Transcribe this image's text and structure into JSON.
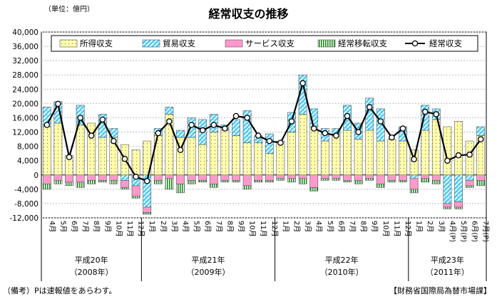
{
  "unit_label": "（単位：億円）",
  "note": "（備考）Pは速報値をあらわす。",
  "source": "【財務省国際局為替市場課】",
  "chart_data": {
    "type": "bar",
    "title": "経常収支の推移",
    "ylim": [
      -12000,
      40000
    ],
    "ytick_step": 4000,
    "yticks": [
      "40,000",
      "36,000",
      "32,000",
      "28,000",
      "24,000",
      "20,000",
      "16,000",
      "12,000",
      "8,000",
      "4,000",
      "0",
      "-4,000",
      "-8,000",
      "-12,000"
    ],
    "grid": true,
    "legend_position": "top",
    "colors": {
      "goods": "#fffcaa",
      "trade": "#55ccf4",
      "services": "#ff99cc",
      "transfers": "#228b22",
      "current": "#000000"
    },
    "categories": [
      "4月",
      "5月",
      "6月",
      "7月",
      "8月",
      "9月",
      "10月",
      "11月",
      "12月",
      "1月",
      "2月",
      "3月",
      "4月",
      "5月",
      "6月",
      "7月",
      "8月",
      "9月",
      "10月",
      "11月",
      "12月",
      "1月",
      "2月",
      "3月",
      "4月",
      "5月",
      "6月",
      "7月",
      "8月",
      "9月",
      "10月",
      "11月",
      "12月",
      "1月",
      "2月",
      "3月",
      "4月(P)",
      "5月(P)",
      "6月(P)",
      "7月(P)"
    ],
    "year_groups": [
      {
        "label": "平成20年",
        "sub": "（2008年）",
        "count": 9
      },
      {
        "label": "平成21年",
        "sub": "（2009年）",
        "count": 12
      },
      {
        "label": "平成22年",
        "sub": "（2010年）",
        "count": 12
      },
      {
        "label": "平成23年",
        "sub": "（2011年）",
        "count": 7
      }
    ],
    "series": [
      {
        "name": "所得収支",
        "key": "goods",
        "values": [
          13500,
          14500,
          5500,
          14000,
          14500,
          10500,
          10500,
          8500,
          7000,
          9500,
          11000,
          17000,
          10500,
          10500,
          8500,
          12000,
          12500,
          11000,
          9000,
          9000,
          6000,
          9500,
          12000,
          17000,
          13500,
          9500,
          11500,
          12500,
          10000,
          12500,
          9500,
          10000,
          9500,
          7000,
          12500,
          15500,
          13500,
          15000,
          9500,
          11000
        ]
      },
      {
        "name": "貿易収支",
        "key": "trade",
        "values": [
          5500,
          6000,
          0,
          5500,
          0,
          6500,
          2500,
          -1500,
          -3000,
          -9000,
          2000,
          2000,
          2000,
          5500,
          7000,
          5000,
          1500,
          4500,
          9000,
          2000,
          5500,
          0,
          5500,
          11000,
          5000,
          3500,
          1500,
          7000,
          4500,
          9000,
          9000,
          0,
          4000,
          -1000,
          7000,
          3000,
          -8000,
          -7500,
          -1500,
          2500
        ]
      },
      {
        "name": "サービス収支",
        "key": "services",
        "values": [
          -2500,
          -1500,
          -2000,
          -2000,
          -1500,
          -1500,
          -1500,
          -2000,
          -3000,
          -1500,
          -1500,
          -1000,
          -2500,
          -1500,
          -1500,
          -2500,
          -1500,
          -1500,
          -3000,
          -1500,
          -1500,
          -1000,
          -1000,
          -1000,
          -3500,
          -1000,
          -1000,
          -1500,
          -1500,
          -1000,
          -2500,
          -1500,
          -1500,
          -3000,
          -1000,
          -1500,
          -1000,
          -1500,
          -1500,
          -1500
        ]
      },
      {
        "name": "経常移転収支",
        "key": "transfers",
        "values": [
          -1500,
          -1000,
          -1000,
          -1500,
          -1000,
          -500,
          -1000,
          -500,
          -500,
          -500,
          -1000,
          -3000,
          -2500,
          -1000,
          -500,
          -1000,
          -500,
          -500,
          -1000,
          -500,
          -500,
          -500,
          -1000,
          -1500,
          -1000,
          -500,
          -500,
          -500,
          -1000,
          -500,
          -1000,
          -500,
          -500,
          -1000,
          -1000,
          -1000,
          -500,
          -500,
          -500,
          -1500
        ]
      },
      {
        "name": "経常収支",
        "key": "current",
        "type": "line",
        "values": [
          14000,
          19900,
          5000,
          16000,
          11000,
          15500,
          9500,
          4500,
          -500,
          -1700,
          11700,
          15000,
          7000,
          14000,
          12500,
          14000,
          13000,
          16500,
          16000,
          11000,
          9500,
          9000,
          15000,
          25700,
          13000,
          11700,
          11000,
          16500,
          12000,
          19000,
          15000,
          10500,
          13000,
          4400,
          17700,
          17000,
          4000,
          5500,
          5700,
          10000
        ]
      }
    ]
  }
}
